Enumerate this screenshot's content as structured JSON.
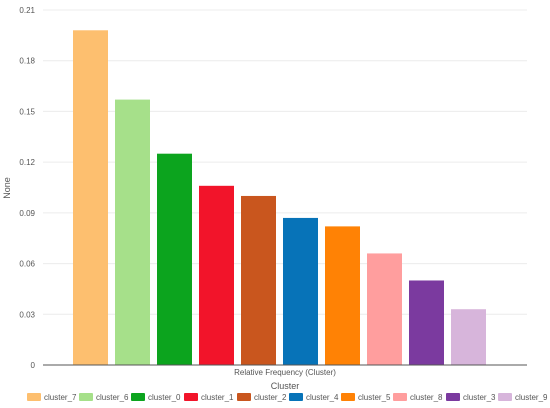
{
  "chart_data": {
    "type": "bar",
    "title": "",
    "xlabel": "Cluster",
    "x_category_label": "Relative Frequency (Cluster)",
    "ylabel": "None",
    "ylim": [
      0,
      0.21
    ],
    "yticks": [
      0,
      0.03,
      0.06,
      0.09,
      0.12,
      0.15,
      0.18,
      0.21
    ],
    "ytick_labels": [
      "0",
      "0.03",
      "0.06",
      "0.09",
      "0.12",
      "0.15",
      "0.18",
      "0.21"
    ],
    "grid": true,
    "legend_position": "bottom",
    "categories": [
      "cluster_7",
      "cluster_6",
      "cluster_0",
      "cluster_1",
      "cluster_2",
      "cluster_4",
      "cluster_5",
      "cluster_8",
      "cluster_3",
      "cluster_9"
    ],
    "values": [
      0.198,
      0.157,
      0.125,
      0.106,
      0.1,
      0.087,
      0.082,
      0.066,
      0.05,
      0.033
    ],
    "colors": [
      "#FDBF6F",
      "#A6E08A",
      "#0CA41E",
      "#F2142A",
      "#C9561E",
      "#0773B8",
      "#FF8205",
      "#FF9E9E",
      "#7B3A9F",
      "#D7B5DB"
    ]
  }
}
